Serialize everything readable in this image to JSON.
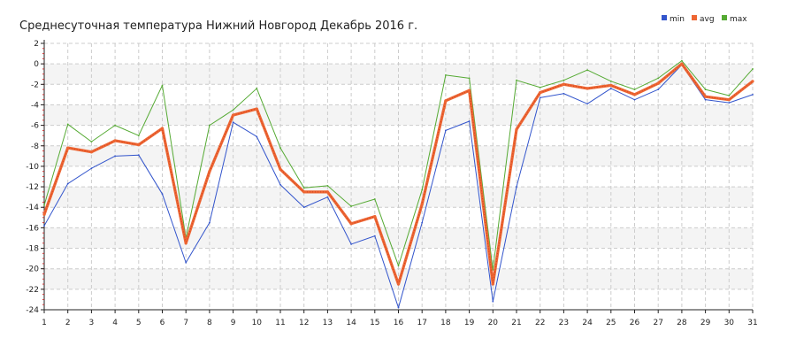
{
  "chart_data": {
    "type": "line",
    "title": "Среднесуточная температура Нижний Новгород  Декабрь 2016 г.",
    "xlabel": "",
    "ylabel": "",
    "x": [
      1,
      2,
      3,
      4,
      5,
      6,
      7,
      8,
      9,
      10,
      11,
      12,
      13,
      14,
      15,
      16,
      17,
      18,
      19,
      20,
      21,
      22,
      23,
      24,
      25,
      26,
      27,
      28,
      29,
      30,
      31
    ],
    "x_tick_labels": [
      "1",
      "2",
      "3",
      "4",
      "5",
      "6",
      "7",
      "8",
      "9",
      "10",
      "11",
      "12",
      "13",
      "14",
      "15",
      "16",
      "17",
      "18",
      "19",
      "20",
      "21",
      "22",
      "23",
      "24",
      "25",
      "26",
      "27",
      "28",
      "29",
      "30",
      "31"
    ],
    "ylim": [
      -24,
      2
    ],
    "y_ticks": [
      2,
      0,
      -2,
      -4,
      -6,
      -8,
      -10,
      -12,
      -14,
      -16,
      -18,
      -20,
      -22,
      -24
    ],
    "y_tick_labels": [
      "2",
      "0",
      "-2",
      "-4",
      "-6",
      "-8",
      "-10",
      "-12",
      "-14",
      "-16",
      "-18",
      "-20",
      "-22",
      "-24"
    ],
    "grid": true,
    "legend_position": "top-right",
    "series": [
      {
        "name": "min",
        "color": "#3355cc",
        "values": [
          -15.8,
          -11.7,
          -10.2,
          -9.0,
          -8.9,
          -12.7,
          -19.4,
          -15.5,
          -5.7,
          -7.1,
          -11.8,
          -14.0,
          -13.0,
          -17.6,
          -16.8,
          -23.8,
          -15.5,
          -6.5,
          -5.6,
          -23.2,
          -12.0,
          -3.3,
          -2.9,
          -3.9,
          -2.4,
          -3.5,
          -2.5,
          -0.1,
          -3.5,
          -3.8,
          -3.0
        ]
      },
      {
        "name": "avg",
        "color": "#ee6633",
        "values": [
          -14.7,
          -8.2,
          -8.6,
          -7.5,
          -7.9,
          -6.3,
          -17.5,
          -10.5,
          -5.0,
          -4.4,
          -10.3,
          -12.5,
          -12.5,
          -15.6,
          -14.9,
          -21.5,
          -13.7,
          -3.6,
          -2.6,
          -21.5,
          -6.4,
          -2.8,
          -2.0,
          -2.4,
          -2.1,
          -3.0,
          -1.9,
          0.0,
          -3.2,
          -3.5,
          -1.7
        ]
      },
      {
        "name": "max",
        "color": "#55aa33",
        "values": [
          -13.8,
          -5.9,
          -7.6,
          -6.0,
          -7.0,
          -2.1,
          -17.0,
          -6.0,
          -4.5,
          -2.4,
          -8.2,
          -12.1,
          -11.9,
          -13.9,
          -13.2,
          -19.7,
          -12.3,
          -1.1,
          -1.4,
          -20.1,
          -1.6,
          -2.3,
          -1.6,
          -0.6,
          -1.7,
          -2.5,
          -1.4,
          0.3,
          -2.5,
          -3.1,
          -0.5
        ]
      }
    ]
  }
}
